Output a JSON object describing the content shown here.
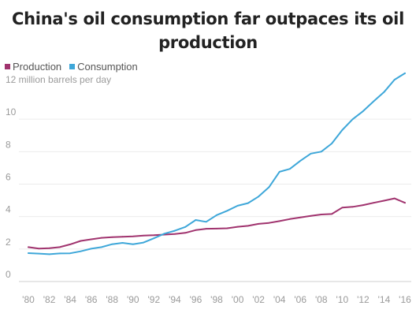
{
  "chart_data": {
    "type": "line",
    "title": "China's oil consumption far outpaces its oil production",
    "xlabel": "",
    "ylabel": "12 million barrels per day",
    "x": [
      1980,
      1981,
      1982,
      1983,
      1984,
      1985,
      1986,
      1987,
      1988,
      1989,
      1990,
      1991,
      1992,
      1993,
      1994,
      1995,
      1996,
      1997,
      1998,
      1999,
      2000,
      2001,
      2002,
      2003,
      2004,
      2005,
      2006,
      2007,
      2008,
      2009,
      2010,
      2011,
      2012,
      2013,
      2014,
      2015,
      2016
    ],
    "ylim": [
      0,
      12
    ],
    "yticks": [
      0,
      2,
      4,
      6,
      8,
      10
    ],
    "xtick_labels": [
      "'80",
      "'82",
      "'84",
      "'86",
      "'88",
      "'90",
      "'92",
      "'94",
      "'96",
      "'98",
      "'00",
      "'02",
      "'04",
      "'06",
      "'08",
      "'10",
      "'12",
      "'14",
      "'16"
    ],
    "grid": true,
    "legend_position": "top-left",
    "series": [
      {
        "name": "Production",
        "color": "#a0336e",
        "values": [
          2.12,
          2.03,
          2.05,
          2.12,
          2.29,
          2.5,
          2.6,
          2.69,
          2.73,
          2.76,
          2.78,
          2.83,
          2.85,
          2.89,
          2.93,
          3.0,
          3.17,
          3.25,
          3.26,
          3.28,
          3.37,
          3.43,
          3.55,
          3.61,
          3.72,
          3.85,
          3.95,
          4.04,
          4.13,
          4.16,
          4.55,
          4.6,
          4.71,
          4.85,
          4.98,
          5.12,
          4.85
        ]
      },
      {
        "name": "Consumption",
        "color": "#3ea7d9",
        "values": [
          1.75,
          1.72,
          1.68,
          1.73,
          1.74,
          1.86,
          2.02,
          2.12,
          2.3,
          2.38,
          2.3,
          2.4,
          2.66,
          2.95,
          3.13,
          3.36,
          3.79,
          3.68,
          4.09,
          4.36,
          4.67,
          4.83,
          5.23,
          5.81,
          6.76,
          6.94,
          7.44,
          7.88,
          8.0,
          8.5,
          9.33,
          10.0,
          10.5,
          11.1,
          11.67,
          12.43,
          12.83
        ]
      }
    ]
  }
}
